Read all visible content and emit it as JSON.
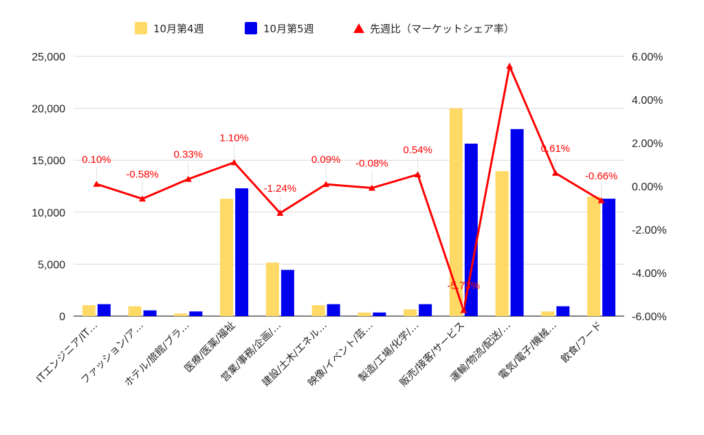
{
  "chart_data": {
    "type": "bar",
    "categories": [
      "ITエンジニア/IT…",
      "ファッション/ア…",
      "ホテル/旅館/ブラ…",
      "医療/医薬/福祉",
      "営業/事務/企画/…",
      "建設/土木/エネル…",
      "映像/イベント/芸…",
      "製造/工場/化学/…",
      "販売/接客/サービス",
      "運輸/物流/配送/…",
      "電気/電子/機械…",
      "飲食/フード"
    ],
    "series": [
      {
        "name": "10月第4週",
        "kind": "bar",
        "axis": "left",
        "color": "#ffd966",
        "values": [
          1050,
          950,
          250,
          11300,
          5150,
          1050,
          350,
          650,
          20000,
          13950,
          450,
          11500
        ]
      },
      {
        "name": "10月第5週",
        "kind": "bar",
        "axis": "left",
        "color": "#0000ee",
        "values": [
          1150,
          550,
          450,
          12300,
          4450,
          1150,
          350,
          1150,
          16600,
          18000,
          950,
          11300
        ]
      },
      {
        "name": "先週比（マーケットシェア率）",
        "kind": "line",
        "axis": "right",
        "color": "#ff0000",
        "values": [
          0.1,
          -0.58,
          0.33,
          1.1,
          -1.24,
          0.09,
          -0.08,
          0.54,
          -5.73,
          5.55,
          0.61,
          -0.66
        ],
        "labels": [
          "0.10%",
          "-0.58%",
          "0.33%",
          "1.10%",
          "-1.24%",
          "0.09%",
          "-0.08%",
          "0.54%",
          "-5.73%",
          "",
          "0.61%",
          "-0.66%"
        ]
      }
    ],
    "y_left": {
      "ylim": [
        0,
        25000
      ],
      "ticks": [
        "0",
        "5,000",
        "10,000",
        "15,000",
        "20,000",
        "25,000"
      ]
    },
    "y_right": {
      "ylim": [
        -6,
        6
      ],
      "ticks": [
        "-6.00%",
        "-4.00%",
        "-2.00%",
        "0.00%",
        "2.00%",
        "4.00%",
        "6.00%"
      ]
    },
    "grid": true,
    "legend_position": "top-center"
  }
}
